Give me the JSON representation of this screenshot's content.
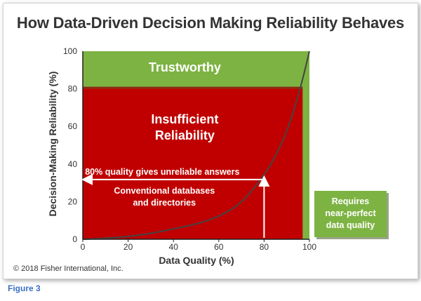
{
  "chart_data": {
    "type": "line",
    "title": "How Data-Driven Decision Making Reliability Behaves",
    "xlabel": "Data Quality (%)",
    "ylabel": "Decision-Making Reliability (%)",
    "xlim": [
      0,
      100
    ],
    "ylim": [
      0,
      100
    ],
    "xticks": [
      "0",
      "20",
      "40",
      "60",
      "80",
      "100"
    ],
    "yticks": [
      "0",
      "20",
      "40",
      "60",
      "80",
      "100"
    ],
    "grid": false,
    "series": [
      {
        "x": [
          0,
          10,
          20,
          30,
          40,
          50,
          60,
          70,
          80,
          85,
          90,
          94,
          97,
          100
        ],
        "y": [
          0,
          0.5,
          1.5,
          3,
          5.5,
          8,
          12,
          19,
          34,
          44,
          57,
          72,
          85,
          100
        ]
      }
    ],
    "regions": [
      {
        "label": "Trustworthy",
        "y_range": [
          80,
          100
        ],
        "color": "#7db342"
      },
      {
        "label": "Insufficient Reliability",
        "x_range": [
          0,
          97
        ],
        "y_range": [
          0,
          80
        ],
        "color": "#c00000"
      }
    ],
    "annotations": {
      "arrow_text": "80% quality gives unreliable answers",
      "arrow_x": 80,
      "arrow_y": 34,
      "conventional": "Conventional databases and directories",
      "callout": "Requires near-perfect data quality"
    },
    "colors": {
      "green": "#7db342",
      "red": "#c00000",
      "curve": "#444444",
      "text_white": "#ffffff"
    }
  },
  "copyright": "© 2018 Fisher International, Inc.",
  "figure_label": "Figure 3"
}
